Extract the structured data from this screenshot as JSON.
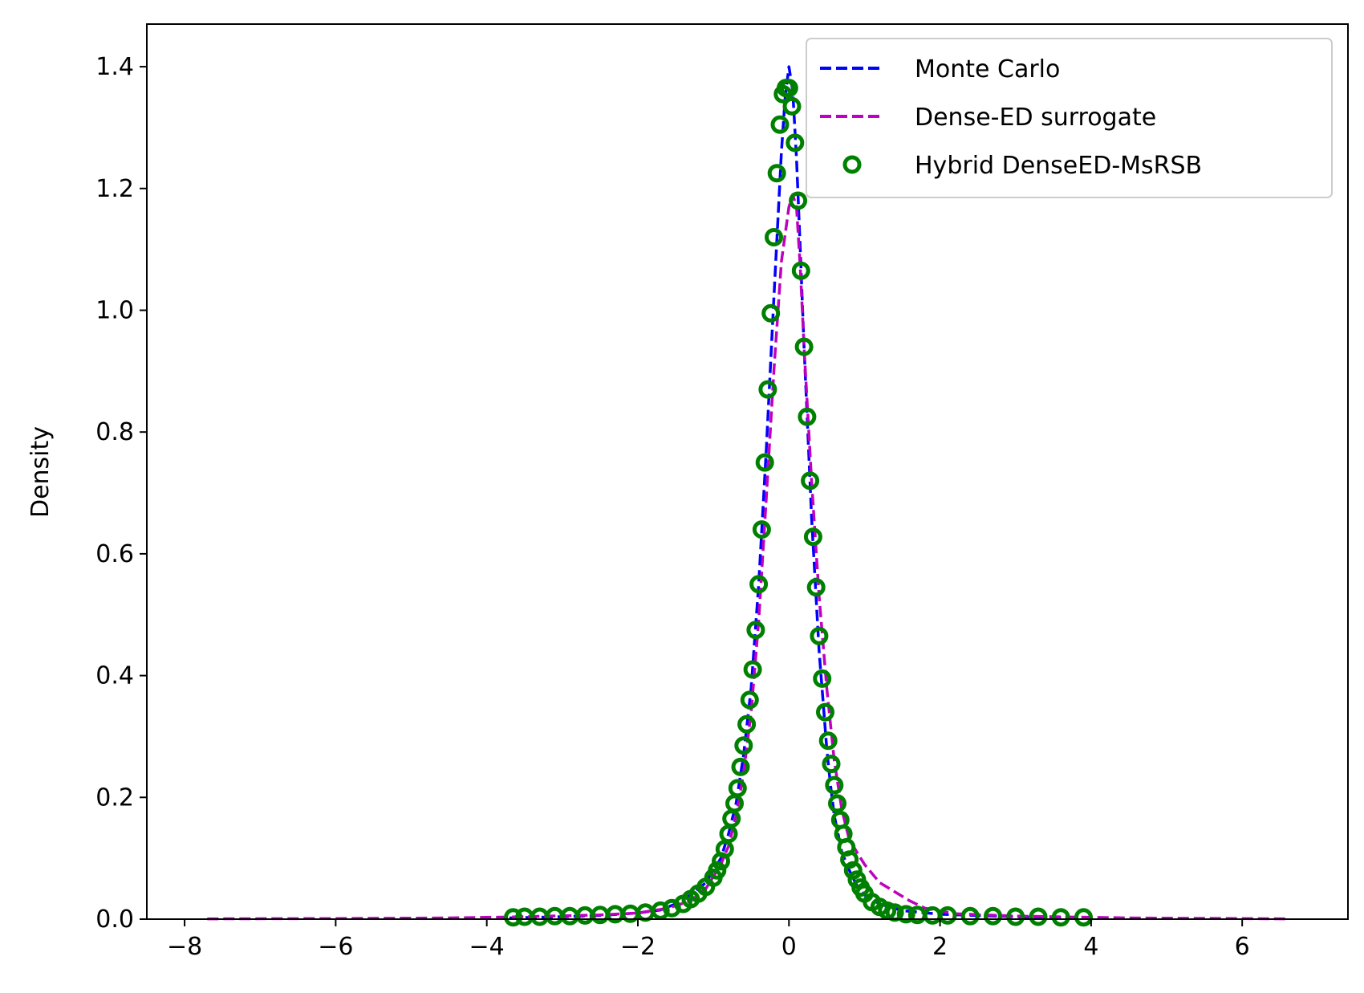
{
  "chart_data": {
    "type": "line",
    "title": "",
    "xlabel": "",
    "ylabel": "Density",
    "xlim": [
      -8.5,
      7.4
    ],
    "ylim": [
      0,
      1.47
    ],
    "xticks": [
      -8,
      -6,
      -4,
      -2,
      0,
      2,
      4,
      6
    ],
    "xtick_labels": [
      "−8",
      "−6",
      "−4",
      "−2",
      "0",
      "2",
      "4",
      "6"
    ],
    "yticks": [
      0.0,
      0.2,
      0.4,
      0.6,
      0.8,
      1.0,
      1.2,
      1.4
    ],
    "ytick_labels": [
      "0.0",
      "0.2",
      "0.4",
      "0.6",
      "0.8",
      "1.0",
      "1.2",
      "1.4"
    ],
    "grid": false,
    "legend_position": "top-right",
    "series": [
      {
        "name": "Monte Carlo",
        "style": "dashed-line",
        "color": "#0000ff",
        "x": [
          -3.7,
          -3.0,
          -2.5,
          -2.0,
          -1.7,
          -1.5,
          -1.3,
          -1.1,
          -0.9,
          -0.8,
          -0.7,
          -0.6,
          -0.5,
          -0.4,
          -0.3,
          -0.2,
          -0.1,
          -0.05,
          0.0,
          0.05,
          0.1,
          0.15,
          0.2,
          0.25,
          0.3,
          0.35,
          0.4,
          0.45,
          0.5,
          0.55,
          0.6,
          0.7,
          0.8,
          0.9,
          1.0,
          1.2,
          1.5,
          2.0,
          3.0,
          3.9
        ],
        "y": [
          0.002,
          0.004,
          0.006,
          0.01,
          0.015,
          0.025,
          0.04,
          0.06,
          0.1,
          0.14,
          0.19,
          0.27,
          0.38,
          0.55,
          0.77,
          1.02,
          1.26,
          1.35,
          1.4,
          1.36,
          1.25,
          1.1,
          0.94,
          0.8,
          0.66,
          0.55,
          0.44,
          0.36,
          0.28,
          0.22,
          0.17,
          0.11,
          0.08,
          0.055,
          0.04,
          0.025,
          0.014,
          0.008,
          0.004,
          0.002
        ]
      },
      {
        "name": "Dense-ED surrogate",
        "style": "dashed-line",
        "color": "#bf00bf",
        "x": [
          -7.7,
          -6.0,
          -4.5,
          -3.5,
          -2.5,
          -2.0,
          -1.6,
          -1.3,
          -1.1,
          -0.9,
          -0.8,
          -0.7,
          -0.6,
          -0.5,
          -0.4,
          -0.3,
          -0.2,
          -0.1,
          0.0,
          0.05,
          0.1,
          0.15,
          0.2,
          0.3,
          0.4,
          0.5,
          0.6,
          0.7,
          0.8,
          0.9,
          1.0,
          1.2,
          1.4,
          1.6,
          1.8,
          2.2,
          3.0,
          4.5,
          6.6
        ],
        "y": [
          0.0005,
          0.001,
          0.002,
          0.004,
          0.007,
          0.01,
          0.018,
          0.03,
          0.05,
          0.09,
          0.12,
          0.17,
          0.24,
          0.34,
          0.49,
          0.69,
          0.9,
          1.08,
          1.17,
          1.19,
          1.17,
          1.07,
          0.94,
          0.72,
          0.53,
          0.38,
          0.26,
          0.18,
          0.13,
          0.11,
          0.09,
          0.06,
          0.045,
          0.03,
          0.018,
          0.009,
          0.005,
          0.002,
          0.0005
        ]
      },
      {
        "name": "Hybrid DenseED-MsRSB",
        "style": "circle-markers",
        "color": "#008000",
        "x": [
          -3.65,
          -3.5,
          -3.3,
          -3.1,
          -2.9,
          -2.7,
          -2.5,
          -2.3,
          -2.1,
          -1.9,
          -1.7,
          -1.55,
          -1.4,
          -1.3,
          -1.2,
          -1.1,
          -1.0,
          -0.95,
          -0.9,
          -0.85,
          -0.8,
          -0.76,
          -0.72,
          -0.68,
          -0.64,
          -0.6,
          -0.56,
          -0.52,
          -0.48,
          -0.44,
          -0.4,
          -0.36,
          -0.32,
          -0.28,
          -0.24,
          -0.2,
          -0.16,
          -0.12,
          -0.08,
          -0.04,
          0.0,
          0.04,
          0.08,
          0.12,
          0.16,
          0.2,
          0.24,
          0.28,
          0.32,
          0.36,
          0.4,
          0.44,
          0.48,
          0.52,
          0.56,
          0.6,
          0.64,
          0.68,
          0.72,
          0.76,
          0.8,
          0.85,
          0.9,
          0.95,
          1.0,
          1.1,
          1.2,
          1.3,
          1.4,
          1.55,
          1.7,
          1.9,
          2.1,
          2.4,
          2.7,
          3.0,
          3.3,
          3.6,
          3.9
        ],
        "y": [
          0.003,
          0.004,
          0.004,
          0.005,
          0.005,
          0.006,
          0.007,
          0.008,
          0.009,
          0.011,
          0.014,
          0.018,
          0.025,
          0.033,
          0.042,
          0.053,
          0.068,
          0.08,
          0.095,
          0.115,
          0.14,
          0.165,
          0.19,
          0.215,
          0.25,
          0.285,
          0.32,
          0.36,
          0.41,
          0.475,
          0.55,
          0.64,
          0.75,
          0.87,
          0.995,
          1.12,
          1.225,
          1.305,
          1.355,
          1.365,
          1.365,
          1.335,
          1.275,
          1.18,
          1.065,
          0.94,
          0.825,
          0.72,
          0.628,
          0.545,
          0.465,
          0.395,
          0.34,
          0.293,
          0.255,
          0.22,
          0.19,
          0.163,
          0.14,
          0.118,
          0.098,
          0.08,
          0.065,
          0.052,
          0.042,
          0.028,
          0.02,
          0.014,
          0.011,
          0.008,
          0.007,
          0.006,
          0.006,
          0.005,
          0.005,
          0.004,
          0.004,
          0.003,
          0.003
        ]
      }
    ]
  }
}
